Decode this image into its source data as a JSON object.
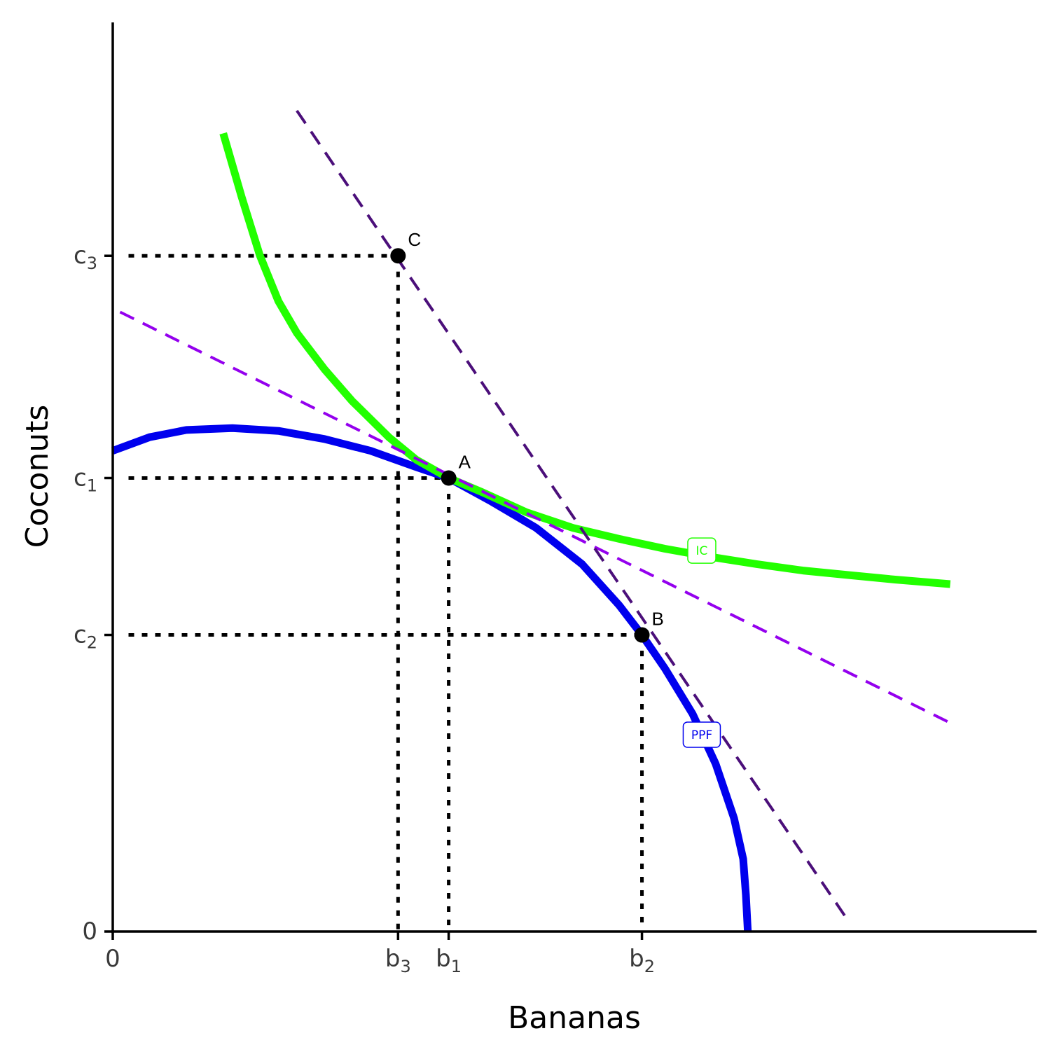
{
  "chart_data": {
    "type": "line",
    "title": "",
    "xlabel": "Bananas",
    "ylabel": "Coconuts",
    "xlim": [
      0,
      10
    ],
    "ylim": [
      0,
      10
    ],
    "grid": false,
    "x_ticks": [
      {
        "value": 0,
        "base": "0",
        "sub": ""
      },
      {
        "value": 3.1,
        "base": "b",
        "sub": "3"
      },
      {
        "value": 3.65,
        "base": "b",
        "sub": "1"
      },
      {
        "value": 5.75,
        "base": "b",
        "sub": "2"
      }
    ],
    "y_ticks": [
      {
        "value": 0,
        "base": "0",
        "sub": ""
      },
      {
        "value": 3.27,
        "base": "c",
        "sub": "2"
      },
      {
        "value": 5.0,
        "base": "c",
        "sub": "1"
      },
      {
        "value": 7.45,
        "base": "c",
        "sub": "3"
      }
    ],
    "series": [
      {
        "name": "PPF",
        "color": "#0000ee",
        "style": "solid",
        "points": [
          [
            0,
            5.3
          ],
          [
            0.4,
            5.45
          ],
          [
            0.8,
            5.53
          ],
          [
            1.3,
            5.55
          ],
          [
            1.8,
            5.52
          ],
          [
            2.3,
            5.43
          ],
          [
            2.8,
            5.3
          ],
          [
            3.3,
            5.12
          ],
          [
            3.65,
            5.0
          ],
          [
            4.1,
            4.75
          ],
          [
            4.6,
            4.45
          ],
          [
            5.1,
            4.05
          ],
          [
            5.5,
            3.6
          ],
          [
            5.75,
            3.27
          ],
          [
            6.0,
            2.9
          ],
          [
            6.3,
            2.4
          ],
          [
            6.55,
            1.85
          ],
          [
            6.75,
            1.25
          ],
          [
            6.85,
            0.8
          ],
          [
            6.88,
            0.4
          ],
          [
            6.9,
            0.0
          ]
        ]
      },
      {
        "name": "IC",
        "color": "#22ff00",
        "style": "solid",
        "points": [
          [
            1.2,
            8.8
          ],
          [
            1.4,
            8.1
          ],
          [
            1.6,
            7.45
          ],
          [
            1.8,
            6.95
          ],
          [
            2.0,
            6.6
          ],
          [
            2.3,
            6.2
          ],
          [
            2.6,
            5.85
          ],
          [
            3.0,
            5.45
          ],
          [
            3.3,
            5.2
          ],
          [
            3.65,
            5.0
          ],
          [
            4.0,
            4.85
          ],
          [
            4.5,
            4.62
          ],
          [
            5.0,
            4.45
          ],
          [
            5.5,
            4.33
          ],
          [
            6.0,
            4.22
          ],
          [
            6.5,
            4.13
          ],
          [
            7.0,
            4.05
          ],
          [
            7.5,
            3.98
          ],
          [
            8.0,
            3.93
          ],
          [
            8.5,
            3.88
          ],
          [
            9.1,
            3.83
          ]
        ]
      },
      {
        "name": "",
        "color": "#9400ee",
        "style": "dashed",
        "points": [
          [
            0.08,
            6.83
          ],
          [
            9.1,
            2.3
          ]
        ]
      },
      {
        "name": "",
        "color": "#4b0f7a",
        "style": "dashed",
        "points": [
          [
            2.0,
            9.05
          ],
          [
            7.97,
            0.15
          ]
        ]
      }
    ],
    "curve_labels": [
      {
        "text": "IC",
        "x": 6.4,
        "y": 4.2,
        "color": "#22ff00"
      },
      {
        "text": "PPF",
        "x": 6.4,
        "y": 2.17,
        "color": "#0000ee"
      }
    ],
    "points": [
      {
        "label": "A",
        "x": 3.65,
        "y": 5.0
      },
      {
        "label": "B",
        "x": 5.75,
        "y": 3.27
      },
      {
        "label": "C",
        "x": 3.1,
        "y": 7.45
      }
    ],
    "guides": [
      {
        "x": 3.1,
        "y": 7.45
      },
      {
        "x": 3.65,
        "y": 5.0
      },
      {
        "x": 5.75,
        "y": 3.27
      }
    ]
  }
}
